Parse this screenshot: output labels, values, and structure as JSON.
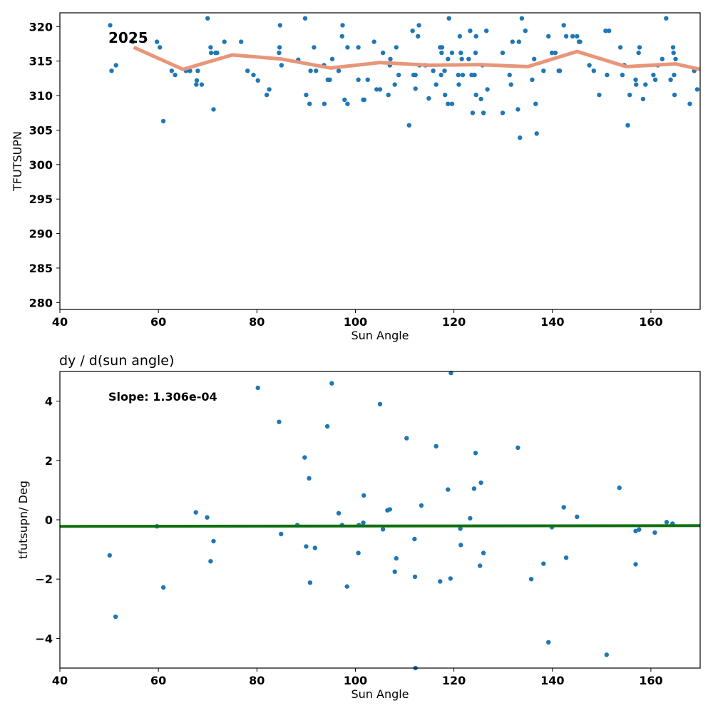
{
  "chart_data": [
    {
      "type": "scatter",
      "title": "",
      "annotation": "2025",
      "xlabel": "Sun Angle",
      "ylabel": "TFUTSUPN",
      "xlim": [
        40,
        170
      ],
      "ylim": [
        279,
        322
      ],
      "xticks": [
        40,
        60,
        80,
        100,
        120,
        140,
        160
      ],
      "yticks": [
        280,
        285,
        290,
        295,
        300,
        305,
        310,
        315,
        320
      ],
      "grid": false,
      "series": [
        {
          "kind": "scatter",
          "color": "#1f77b4",
          "points": [
            [
              50.2,
              320.2
            ],
            [
              50.5,
              313.6
            ],
            [
              51.4,
              314.4
            ],
            [
              54.8,
              317.8
            ],
            [
              59.7,
              317.8
            ],
            [
              60.3,
              317
            ],
            [
              61,
              306.3
            ],
            [
              62.7,
              313.6
            ],
            [
              63.4,
              313
            ],
            [
              65.6,
              313.6
            ],
            [
              66.4,
              313.6
            ],
            [
              67.7,
              311.6
            ],
            [
              67.8,
              312.2
            ],
            [
              68,
              313.6
            ],
            [
              68.8,
              311.6
            ],
            [
              70,
              321.2
            ],
            [
              70.6,
              317
            ],
            [
              70.7,
              316.2
            ],
            [
              71.2,
              308
            ],
            [
              71.6,
              316.2
            ],
            [
              71.9,
              316.2
            ],
            [
              73.4,
              317.8
            ],
            [
              76.8,
              317.8
            ],
            [
              78.1,
              313.6
            ],
            [
              79.3,
              313
            ],
            [
              80.2,
              312.2
            ],
            [
              82,
              310.1
            ],
            [
              82.5,
              310.9
            ],
            [
              84.5,
              316.2
            ],
            [
              84.6,
              317
            ],
            [
              84.7,
              320.2
            ],
            [
              85,
              314.4
            ],
            [
              88.4,
              315.2
            ],
            [
              89.8,
              321.2
            ],
            [
              90,
              310.1
            ],
            [
              90.7,
              308.8
            ],
            [
              90.9,
              313.6
            ],
            [
              91.6,
              317
            ],
            [
              92,
              313.6
            ],
            [
              93.6,
              314.4
            ],
            [
              93.7,
              308.8
            ],
            [
              94.4,
              312.3
            ],
            [
              94.8,
              312.3
            ],
            [
              95.3,
              315.3
            ],
            [
              96.6,
              313.6
            ],
            [
              97.3,
              318.6
            ],
            [
              97.4,
              320.2
            ],
            [
              97.8,
              309.4
            ],
            [
              98.4,
              317
            ],
            [
              98.4,
              308.8
            ],
            [
              100.6,
              312.3
            ],
            [
              100.6,
              317
            ],
            [
              101.6,
              309.4
            ],
            [
              101.8,
              309.4
            ],
            [
              102.5,
              312.3
            ],
            [
              103.8,
              317.8
            ],
            [
              104.3,
              310.9
            ],
            [
              105,
              310.9
            ],
            [
              105.6,
              316.2
            ],
            [
              106.7,
              310.1
            ],
            [
              107,
              314.4
            ],
            [
              107.1,
              315.3
            ],
            [
              108,
              311.6
            ],
            [
              108.3,
              317
            ],
            [
              108.8,
              313
            ],
            [
              110.9,
              305.7
            ],
            [
              111.6,
              319.4
            ],
            [
              111.8,
              313
            ],
            [
              112.2,
              313
            ],
            [
              112.2,
              311
            ],
            [
              112.7,
              318.6
            ],
            [
              112.9,
              320.2
            ],
            [
              113,
              314.4
            ],
            [
              114.2,
              314.4
            ],
            [
              114.9,
              309.6
            ],
            [
              115.8,
              313.6
            ],
            [
              116.4,
              311.6
            ],
            [
              117.2,
              317
            ],
            [
              117.4,
              313
            ],
            [
              117.5,
              316.2
            ],
            [
              117.6,
              317
            ],
            [
              118.1,
              313.6
            ],
            [
              118.2,
              310.1
            ],
            [
              118.8,
              315.3
            ],
            [
              118.8,
              308.8
            ],
            [
              119,
              321.2
            ],
            [
              119.6,
              316.2
            ],
            [
              119.6,
              308.8
            ],
            [
              120.9,
              313
            ],
            [
              121,
              311.6
            ],
            [
              121.2,
              318.6
            ],
            [
              121.4,
              316.2
            ],
            [
              121.6,
              315.3
            ],
            [
              121.8,
              313
            ],
            [
              123,
              315.3
            ],
            [
              123.3,
              319.4
            ],
            [
              123.6,
              313
            ],
            [
              123.8,
              307.5
            ],
            [
              124.2,
              313
            ],
            [
              124.4,
              316.2
            ],
            [
              124.5,
              310.1
            ],
            [
              124.5,
              318.6
            ],
            [
              125.5,
              309.5
            ],
            [
              125.8,
              314.4
            ],
            [
              126,
              307.5
            ],
            [
              126.6,
              319.4
            ],
            [
              126.8,
              310.9
            ],
            [
              129.9,
              307.5
            ],
            [
              129.9,
              316.2
            ],
            [
              131.3,
              313
            ],
            [
              131.6,
              311.6
            ],
            [
              131.9,
              317.8
            ],
            [
              133,
              308
            ],
            [
              133.2,
              317.8
            ],
            [
              133.4,
              303.9
            ],
            [
              133.8,
              321.2
            ],
            [
              134.5,
              319.4
            ],
            [
              135.9,
              312.3
            ],
            [
              136.3,
              315.3
            ],
            [
              136.6,
              308.8
            ],
            [
              136.8,
              304.5
            ],
            [
              138.2,
              313.6
            ],
            [
              139.2,
              318.6
            ],
            [
              139.9,
              316.2
            ],
            [
              140.6,
              316.2
            ],
            [
              141.3,
              313.6
            ],
            [
              141.5,
              313.6
            ],
            [
              142.3,
              320.2
            ],
            [
              142.8,
              318.6
            ],
            [
              144.1,
              318.6
            ],
            [
              145,
              318.6
            ],
            [
              145.4,
              317.8
            ],
            [
              145.6,
              317.8
            ],
            [
              147.5,
              314.4
            ],
            [
              148.4,
              313.6
            ],
            [
              149.5,
              310.1
            ],
            [
              150.8,
              319.4
            ],
            [
              151.1,
              313
            ],
            [
              151.5,
              319.4
            ],
            [
              153.8,
              317
            ],
            [
              154.2,
              313
            ],
            [
              154.6,
              314.4
            ],
            [
              155.3,
              305.7
            ],
            [
              155.7,
              310.1
            ],
            [
              156.9,
              312.3
            ],
            [
              157,
              311.6
            ],
            [
              157.5,
              316.2
            ],
            [
              157.7,
              317
            ],
            [
              158.4,
              309.5
            ],
            [
              158.9,
              311.6
            ],
            [
              160.5,
              313
            ],
            [
              160.9,
              312.3
            ],
            [
              161.4,
              314.4
            ],
            [
              162.3,
              315.3
            ],
            [
              163.1,
              321.2
            ],
            [
              164,
              312.3
            ],
            [
              164.5,
              317
            ],
            [
              164.6,
              316.2
            ],
            [
              164.7,
              313
            ],
            [
              164.8,
              310.1
            ],
            [
              165,
              315.3
            ],
            [
              167.9,
              308.8
            ],
            [
              168.8,
              313.6
            ],
            [
              169.4,
              310.9
            ]
          ]
        },
        {
          "kind": "line",
          "color": "#e8967a",
          "points": [
            [
              55,
              317
            ],
            [
              65,
              313.8
            ],
            [
              75,
              315.9
            ],
            [
              85,
              315.3
            ],
            [
              95,
              314
            ],
            [
              105,
              314.8
            ],
            [
              115,
              314.4
            ],
            [
              125,
              314.5
            ],
            [
              135,
              314.2
            ],
            [
              145,
              316.4
            ],
            [
              155,
              314.2
            ],
            [
              165,
              314.6
            ],
            [
              170,
              313.8
            ]
          ]
        }
      ]
    },
    {
      "type": "scatter",
      "title": "dy / d(sun angle)",
      "annotation": "Slope: 1.306e-04",
      "xlabel": "Sun Angle",
      "ylabel": "tfutsupn/ Deg",
      "xlim": [
        40,
        170
      ],
      "ylim": [
        -5,
        5
      ],
      "xticks": [
        40,
        60,
        80,
        100,
        120,
        140,
        160
      ],
      "yticks": [
        -4,
        -2,
        0,
        2,
        4
      ],
      "ytick_labels": [
        "−4",
        "−2",
        "0",
        "2",
        "4"
      ],
      "grid": false,
      "series": [
        {
          "kind": "scatter",
          "color": "#1f77b4",
          "points": [
            [
              50.1,
              -1.2
            ],
            [
              51.3,
              -3.27
            ],
            [
              59.7,
              -0.22
            ],
            [
              61,
              -2.28
            ],
            [
              67.6,
              0.25
            ],
            [
              69.9,
              0.08
            ],
            [
              70.6,
              -1.4
            ],
            [
              71.2,
              -0.72
            ],
            [
              80.2,
              4.45
            ],
            [
              84.5,
              3.3
            ],
            [
              84.9,
              -0.48
            ],
            [
              88.2,
              -0.18
            ],
            [
              89.7,
              2.1
            ],
            [
              90,
              -0.9
            ],
            [
              90.6,
              1.4
            ],
            [
              90.8,
              -2.12
            ],
            [
              91.8,
              -0.95
            ],
            [
              94.3,
              3.15
            ],
            [
              95.2,
              4.6
            ],
            [
              96.6,
              0.22
            ],
            [
              97.3,
              -0.18
            ],
            [
              98.3,
              -2.25
            ],
            [
              100.6,
              -1.12
            ],
            [
              100.7,
              -0.18
            ],
            [
              101.6,
              -0.1
            ],
            [
              101.7,
              0.82
            ],
            [
              105,
              3.9
            ],
            [
              105.6,
              -0.32
            ],
            [
              106.5,
              0.32
            ],
            [
              107,
              0.35
            ],
            [
              108,
              -1.75
            ],
            [
              108.3,
              -1.3
            ],
            [
              110.4,
              2.75
            ],
            [
              112,
              -0.65
            ],
            [
              112.1,
              -1.92
            ],
            [
              112.2,
              -5
            ],
            [
              113.4,
              0.48
            ],
            [
              116.4,
              2.48
            ],
            [
              117.2,
              -2.08
            ],
            [
              118.8,
              1.02
            ],
            [
              119.3,
              -1.98
            ],
            [
              119.4,
              4.95
            ],
            [
              121.3,
              -0.3
            ],
            [
              121.4,
              -0.85
            ],
            [
              123.3,
              0.05
            ],
            [
              124.1,
              1.05
            ],
            [
              124.4,
              2.25
            ],
            [
              125.3,
              -1.55
            ],
            [
              125.5,
              1.25
            ],
            [
              126,
              -1.12
            ],
            [
              133,
              2.43
            ],
            [
              135.7,
              -2.0
            ],
            [
              138.2,
              -1.48
            ],
            [
              139.2,
              -4.13
            ],
            [
              139.9,
              -0.25
            ],
            [
              142.3,
              0.42
            ],
            [
              142.8,
              -1.28
            ],
            [
              145,
              0.1
            ],
            [
              151,
              -4.55
            ],
            [
              153.6,
              1.08
            ],
            [
              156.9,
              -1.5
            ],
            [
              156.9,
              -0.38
            ],
            [
              157.6,
              -0.33
            ],
            [
              160.8,
              -0.43
            ],
            [
              163.2,
              -0.08
            ],
            [
              164.4,
              -0.13
            ]
          ]
        },
        {
          "kind": "line",
          "color": "#107010",
          "points": [
            [
              40,
              -0.22
            ],
            [
              170,
              -0.2
            ]
          ]
        }
      ]
    }
  ]
}
